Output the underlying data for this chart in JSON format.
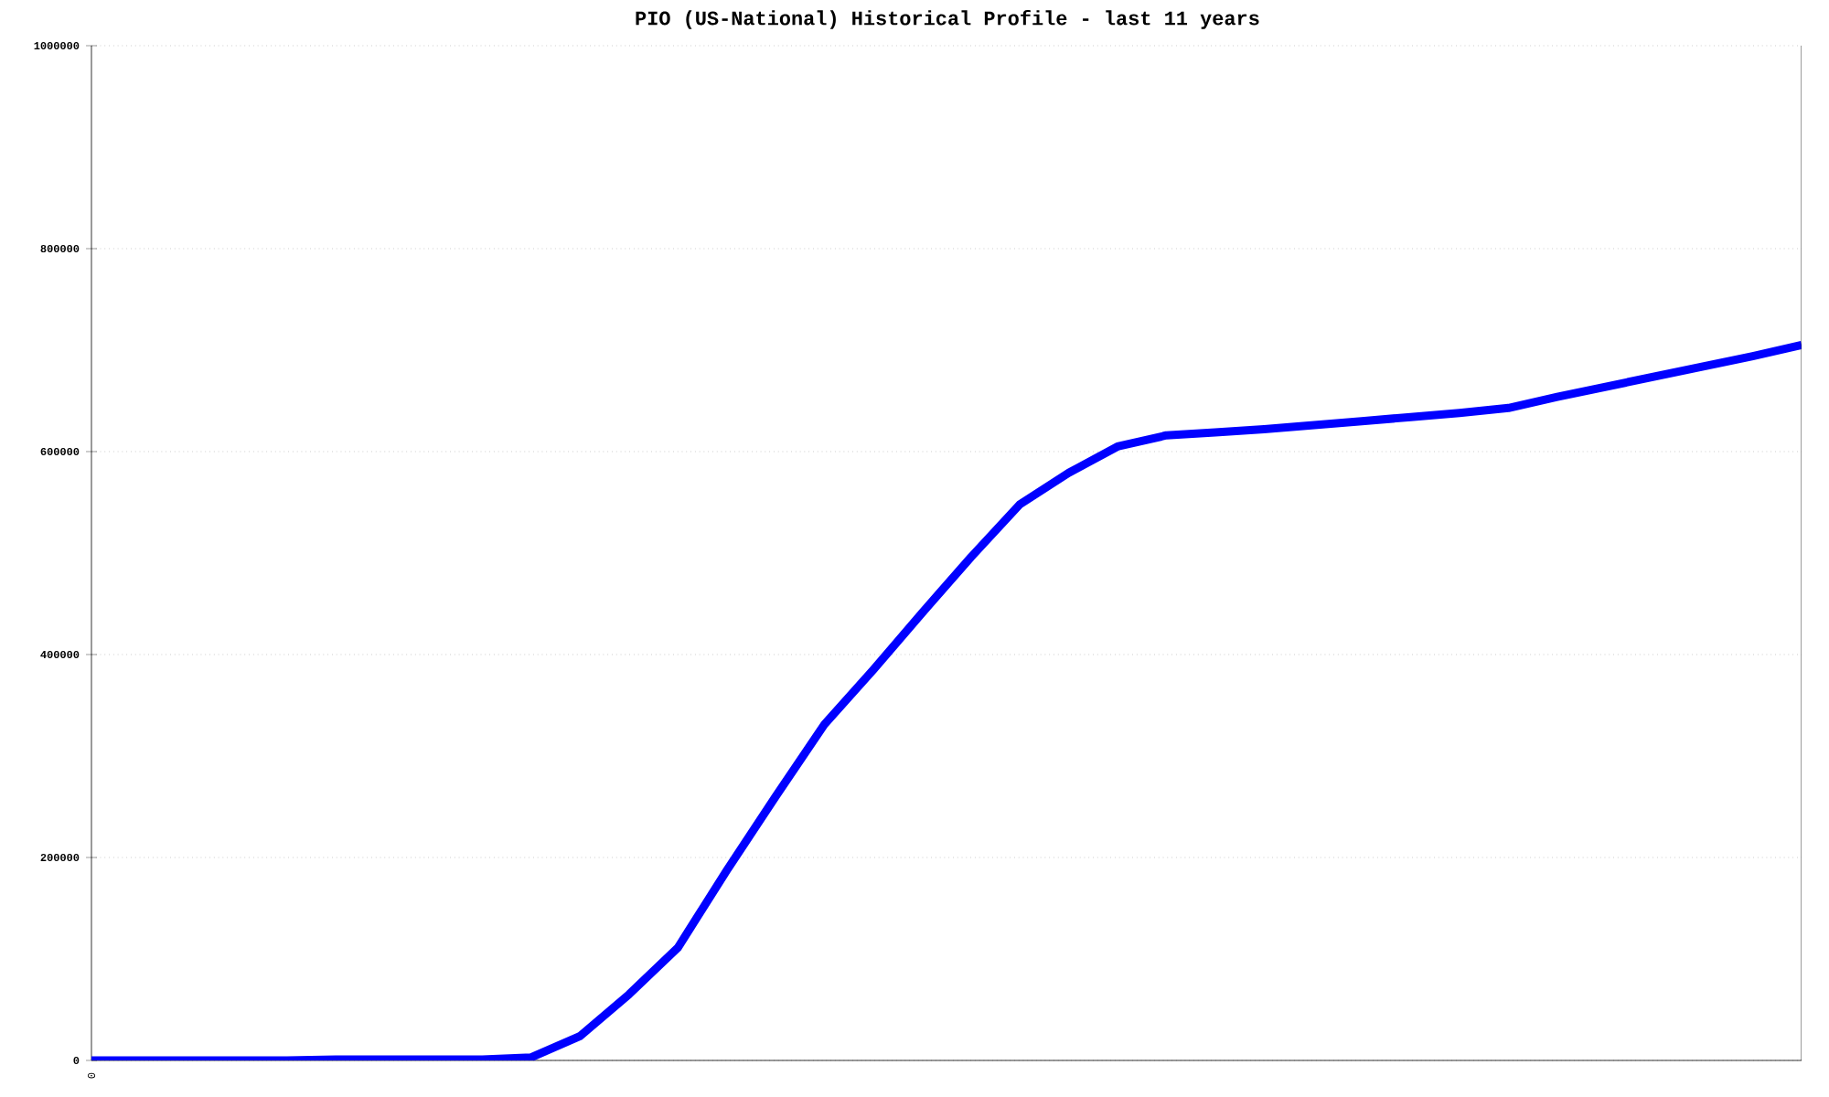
{
  "chart_data": {
    "type": "line",
    "title": "PIO (US-National) Historical Profile - last 11 years",
    "categories": [
      "0",
      null,
      null,
      null,
      null,
      null,
      null,
      null,
      null,
      null,
      null,
      null,
      null,
      null,
      null,
      null,
      null,
      null,
      null,
      null,
      null,
      null,
      null,
      null,
      null,
      null,
      null,
      null,
      null,
      null,
      null,
      null,
      null,
      null,
      null,
      null
    ],
    "series": [
      {
        "color": "#0000ff",
        "values": [
          0,
          0,
          0,
          0,
          0,
          1000,
          1000,
          1000,
          1000,
          3000,
          24000,
          65000,
          111000,
          187000,
          260000,
          331000,
          385000,
          441000,
          496000,
          548000,
          579000,
          605000,
          616000,
          619000,
          622000,
          626000,
          630000,
          634000,
          638000,
          643000,
          654000,
          664000,
          674000,
          684000,
          694000,
          705000
        ]
      }
    ],
    "ylim": [
      0,
      1000000
    ],
    "yticks": [
      0,
      200000,
      400000,
      600000,
      800000,
      1000000
    ],
    "grid": "y",
    "marker": "none",
    "line_style": "solid"
  }
}
